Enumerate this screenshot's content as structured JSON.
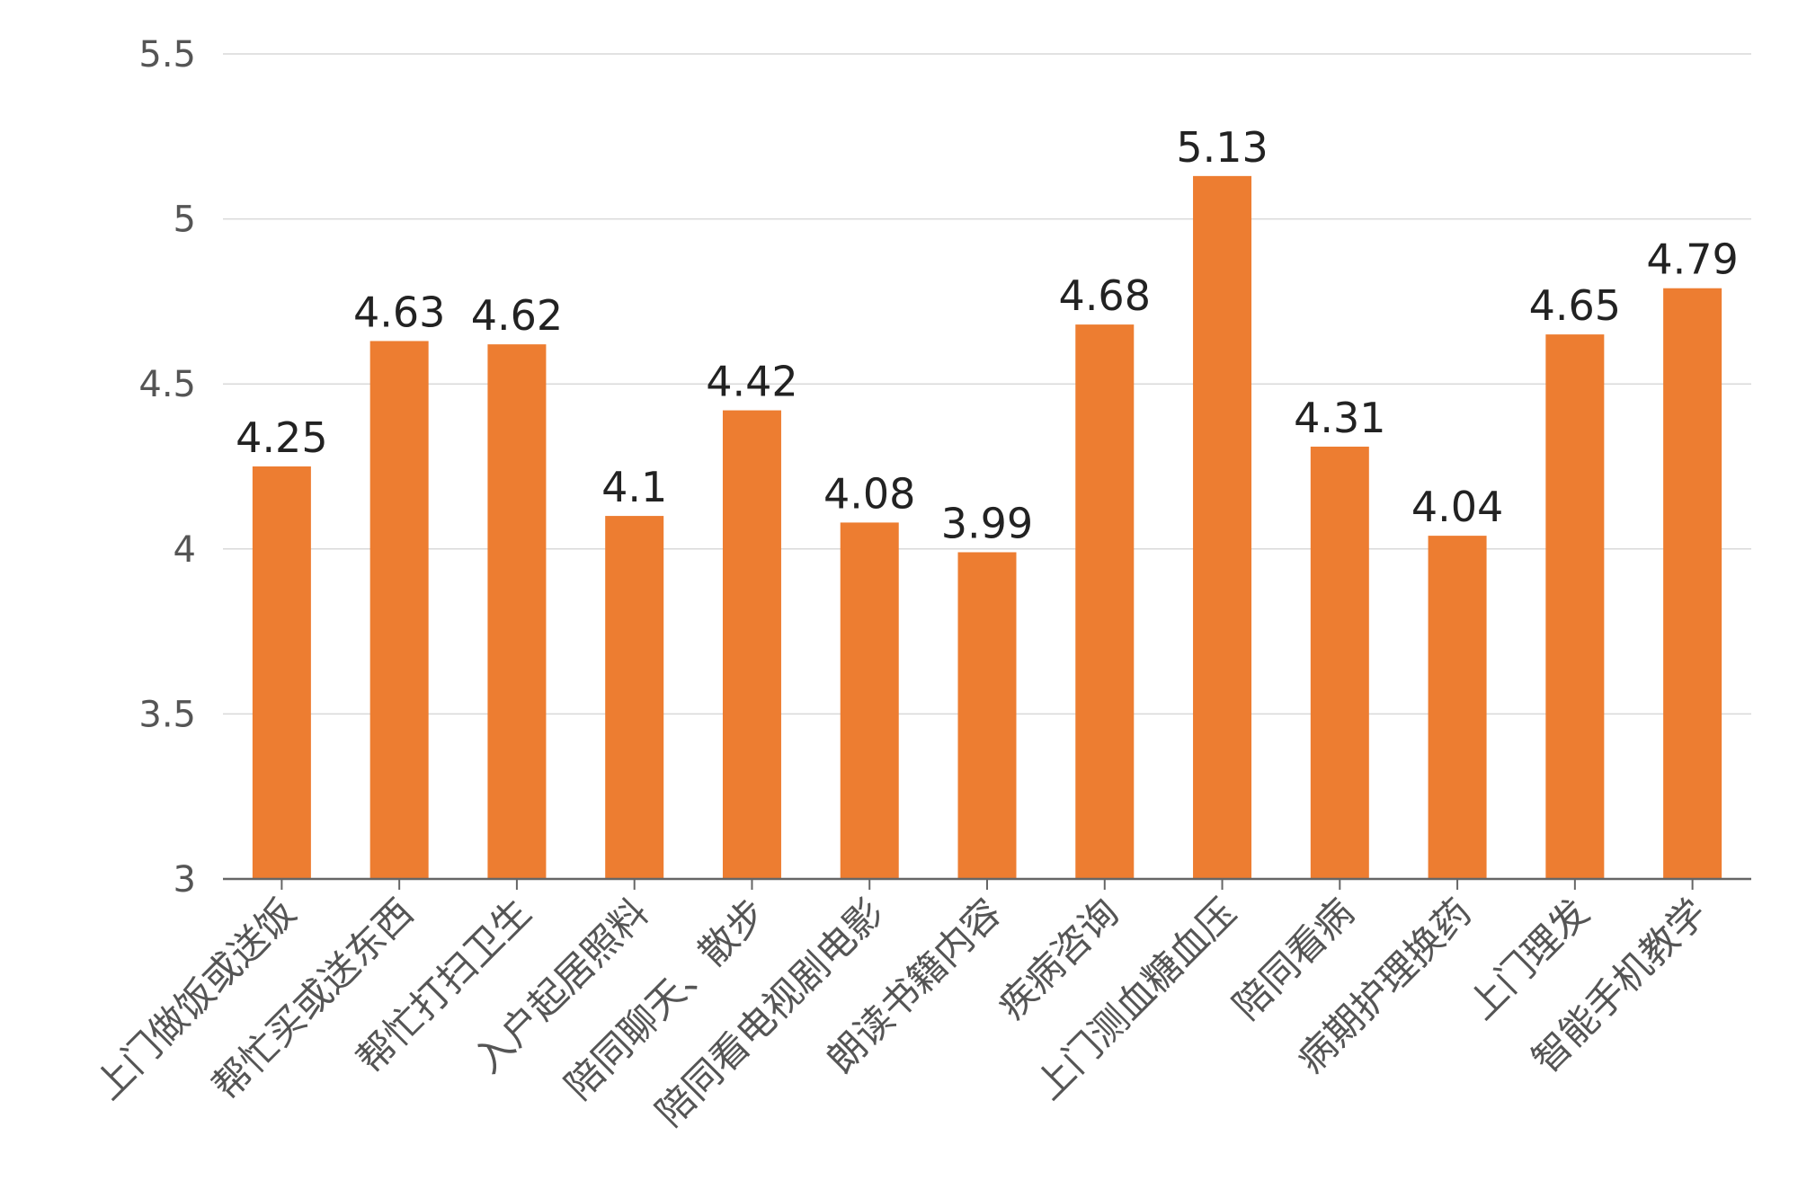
{
  "chart_data": {
    "type": "bar",
    "title": "",
    "xlabel": "",
    "ylabel": "",
    "categories": [
      "上门做饭或送饭",
      "帮忙买或送东西",
      "帮忙打扫卫生",
      "入户起居照料",
      "陪同聊天、散步",
      "陪同看电视剧电影",
      "朗读书籍内容",
      "疾病咨询",
      "上门测血糖血压",
      "陪同看病",
      "病期护理换药",
      "上门理发",
      "智能手机教学"
    ],
    "values": [
      4.25,
      4.63,
      4.62,
      4.1,
      4.42,
      4.08,
      3.99,
      4.68,
      5.13,
      4.31,
      4.04,
      4.65,
      4.79
    ],
    "data_labels": [
      "4.25",
      "4.63",
      "4.62",
      "4.1",
      "4.42",
      "4.08",
      "3.99",
      "4.68",
      "5.13",
      "4.31",
      "4.04",
      "4.65",
      "4.79"
    ],
    "ylim": [
      3,
      5.5
    ],
    "yticks": [
      "3",
      "3.5",
      "4",
      "4.5",
      "5",
      "5.5"
    ],
    "ytick_values": [
      3,
      3.5,
      4,
      4.5,
      5,
      5.5
    ],
    "grid": true,
    "legend": "none",
    "colors": {
      "bar": "#ED7D31",
      "grid": "#D9D9D9",
      "axis": "#666666",
      "tick_text": "#555555",
      "label_text": "#222222"
    }
  }
}
